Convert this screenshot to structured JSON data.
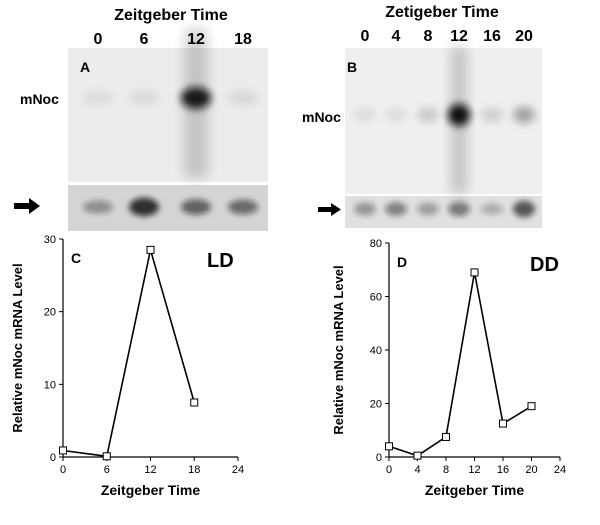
{
  "panel_a": {
    "header": "Zeitgeber Time",
    "lanes": [
      "0",
      "6",
      "12",
      "18"
    ],
    "letter": "A",
    "gene_label": "mNoc"
  },
  "panel_b": {
    "header": "Zetigeber Time",
    "lanes": [
      "0",
      "4",
      "8",
      "12",
      "16",
      "20"
    ],
    "letter": "B",
    "gene_label": "mNoc"
  },
  "blot_a": {
    "mnoc_intensity": [
      0.02,
      0.03,
      0.95,
      0.04
    ],
    "loading_intensity": [
      0.3,
      0.85,
      0.55,
      0.5
    ]
  },
  "blot_b": {
    "mnoc_intensity": [
      0.03,
      0.03,
      0.12,
      1.0,
      0.1,
      0.3
    ],
    "loading_intensity": [
      0.3,
      0.4,
      0.25,
      0.45,
      0.15,
      0.65
    ]
  },
  "colors": {
    "blot_background": "#ececec",
    "loading_background": "#d4d4d4",
    "band": "#111111"
  },
  "chart_data": [
    {
      "type": "line",
      "panel": "C",
      "condition": "LD",
      "x": [
        0,
        6,
        12,
        18
      ],
      "values": [
        0.9,
        0.1,
        28.5,
        7.5
      ],
      "xlabel": "Zeitgeber Time",
      "ylabel": "Relative mNoc mRNA Level",
      "xlim": [
        0,
        24
      ],
      "ylim": [
        0,
        30
      ],
      "xticks": [
        "0",
        "6",
        "12",
        "18",
        "24"
      ],
      "yticks": [
        "0",
        "10",
        "20",
        "30"
      ],
      "grid": false,
      "marker": "open-square"
    },
    {
      "type": "line",
      "panel": "D",
      "condition": "DD",
      "x": [
        0,
        4,
        8,
        12,
        16,
        20
      ],
      "values": [
        4,
        0.5,
        7.5,
        69,
        12.5,
        19
      ],
      "xlabel": "Zeitgeber Time",
      "ylabel": "Relative mNoc mRNA Level",
      "xlim": [
        0,
        24
      ],
      "ylim": [
        0,
        80
      ],
      "xticks": [
        "0",
        "4",
        "8",
        "12",
        "16",
        "20",
        "24"
      ],
      "yticks": [
        "0",
        "20",
        "40",
        "60",
        "80"
      ],
      "grid": false,
      "marker": "open-square"
    }
  ]
}
